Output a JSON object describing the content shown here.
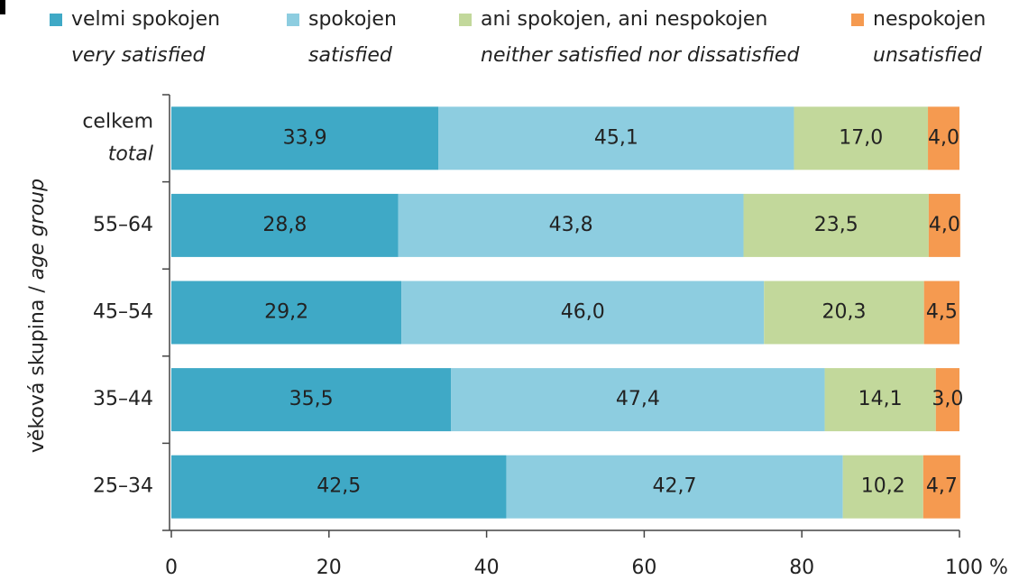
{
  "chart_data": {
    "type": "stacked-barh",
    "categories": [
      "celkem",
      "55–64",
      "45–54",
      "35–44",
      "25–34"
    ],
    "category_labels_en": [
      "total",
      null,
      null,
      null,
      null
    ],
    "ylabel": [
      "věková skupina /",
      "age group"
    ],
    "xlim": [
      0,
      100
    ],
    "xticks": [
      0,
      20,
      40,
      60,
      80,
      {
        "value": 100,
        "label": "100 %"
      }
    ],
    "legend": "top",
    "series": [
      {
        "name": "velmi spokojen",
        "name_en": "very satisfied",
        "color": "#3fa9c6",
        "values": [
          33.9,
          28.8,
          29.2,
          35.5,
          42.5
        ],
        "value_labels": [
          "33,9",
          "28,8",
          "29,2",
          "35,5",
          "42,5"
        ]
      },
      {
        "name": "spokojen",
        "name_en": "satisfied",
        "color": "#8dcde0",
        "values": [
          45.1,
          43.8,
          46.0,
          47.4,
          42.7
        ],
        "value_labels": [
          "45,1",
          "43,8",
          "46,0",
          "47,4",
          "42,7"
        ]
      },
      {
        "name": "ani spokojen, ani nespokojen",
        "name_en": "neither satisfied nor dissatisfied",
        "color": "#c2d89b",
        "values": [
          17.0,
          23.5,
          20.3,
          14.1,
          10.2
        ],
        "value_labels": [
          "17,0",
          "23,5",
          "20,3",
          "14,1",
          "10,2"
        ]
      },
      {
        "name": "nespokojen",
        "name_en": "unsatisfied",
        "color": "#f59a50",
        "values": [
          4.0,
          4.0,
          4.5,
          3.0,
          4.7
        ],
        "value_labels": [
          "4,0",
          "4,0",
          "4,5",
          "3,0",
          "4,7"
        ]
      }
    ]
  }
}
